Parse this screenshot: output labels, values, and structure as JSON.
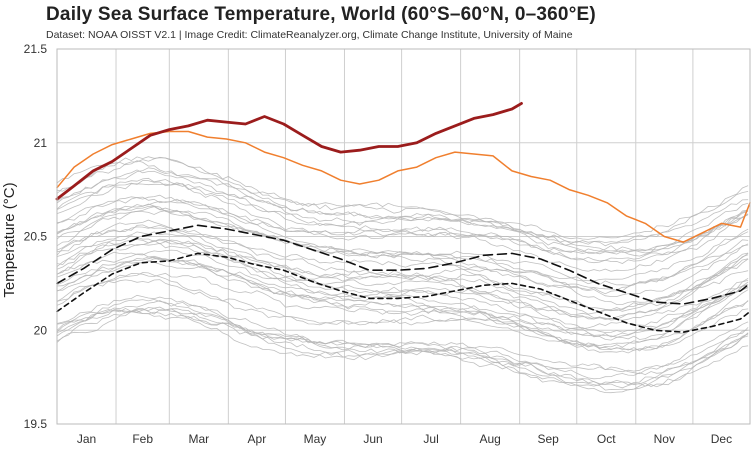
{
  "chart_data": {
    "type": "line",
    "title": "Daily Sea Surface Temperature, World (60°S–60°N, 0–360°E)",
    "subtitle": "Dataset: NOAA OISST V2.1 | Image Credit: ClimateReanalyzer.org, Climate Change Institute, University of Maine",
    "xlabel": "",
    "ylabel": "Temperature (°C)",
    "ylim": [
      19.5,
      21.5
    ],
    "y_ticks": [
      "19.5",
      "20",
      "20.5",
      "21",
      "21.5"
    ],
    "y_tick_values": [
      19.5,
      20,
      20.5,
      21,
      21.5
    ],
    "x_ticks": [
      "Jan",
      "Feb",
      "Mar",
      "Apr",
      "May",
      "Jun",
      "Jul",
      "Aug",
      "Sep",
      "Oct",
      "Nov",
      "Dec"
    ],
    "xlim": [
      1,
      365
    ],
    "grid": true,
    "colors": {
      "background_years": "#b5b5b5",
      "current_year": "#9b1c1c",
      "previous_year": "#f07f2e",
      "mean_lines": "#111111",
      "grid": "#cfcfcf"
    },
    "series": [
      {
        "style": "thick-darkred",
        "x": [
          1,
          10,
          20,
          30,
          40,
          50,
          60,
          70,
          80,
          90,
          100,
          110,
          120,
          130,
          140,
          150,
          160,
          170,
          180,
          190,
          200,
          210,
          220,
          230,
          240,
          245
        ],
        "values": [
          20.7,
          20.77,
          20.85,
          20.9,
          20.97,
          21.04,
          21.07,
          21.09,
          21.12,
          21.11,
          21.1,
          21.14,
          21.1,
          21.04,
          20.98,
          20.95,
          20.96,
          20.98,
          20.98,
          21.0,
          21.05,
          21.09,
          21.13,
          21.15,
          21.18,
          21.21
        ]
      },
      {
        "style": "orange",
        "x": [
          1,
          10,
          20,
          30,
          40,
          50,
          60,
          70,
          80,
          90,
          100,
          110,
          120,
          130,
          140,
          150,
          160,
          170,
          180,
          190,
          200,
          210,
          220,
          230,
          240,
          250,
          260,
          270,
          280,
          290,
          300,
          310,
          320,
          330,
          340,
          350,
          360,
          365
        ],
        "values": [
          20.76,
          20.87,
          20.94,
          20.99,
          21.02,
          21.05,
          21.06,
          21.06,
          21.03,
          21.02,
          21.0,
          20.95,
          20.92,
          20.88,
          20.85,
          20.8,
          20.78,
          20.8,
          20.85,
          20.87,
          20.92,
          20.95,
          20.94,
          20.93,
          20.85,
          20.82,
          20.8,
          20.75,
          20.72,
          20.68,
          20.61,
          20.57,
          20.5,
          20.47,
          20.52,
          20.57,
          20.55,
          20.68
        ]
      },
      {
        "style": "black-dashed-long",
        "x": [
          1,
          15,
          30,
          45,
          60,
          75,
          90,
          105,
          120,
          135,
          150,
          165,
          180,
          195,
          210,
          225,
          240,
          255,
          270,
          285,
          300,
          315,
          330,
          345,
          360,
          365
        ],
        "values": [
          20.25,
          20.33,
          20.43,
          20.5,
          20.53,
          20.56,
          20.54,
          20.51,
          20.48,
          20.43,
          20.38,
          20.32,
          20.32,
          20.33,
          20.36,
          20.4,
          20.41,
          20.38,
          20.32,
          20.25,
          20.2,
          20.15,
          20.14,
          20.17,
          20.21,
          20.25
        ]
      },
      {
        "style": "black-dashed-short",
        "x": [
          1,
          15,
          30,
          45,
          60,
          75,
          90,
          105,
          120,
          135,
          150,
          165,
          180,
          195,
          210,
          225,
          240,
          255,
          270,
          285,
          300,
          315,
          330,
          345,
          360,
          365
        ],
        "values": [
          20.1,
          20.2,
          20.3,
          20.36,
          20.37,
          20.41,
          20.39,
          20.35,
          20.32,
          20.26,
          20.21,
          20.17,
          20.17,
          20.18,
          20.21,
          20.24,
          20.25,
          20.22,
          20.16,
          20.1,
          20.04,
          20.0,
          19.99,
          20.02,
          20.06,
          20.1
        ]
      }
    ],
    "background_years_count": 40
  }
}
